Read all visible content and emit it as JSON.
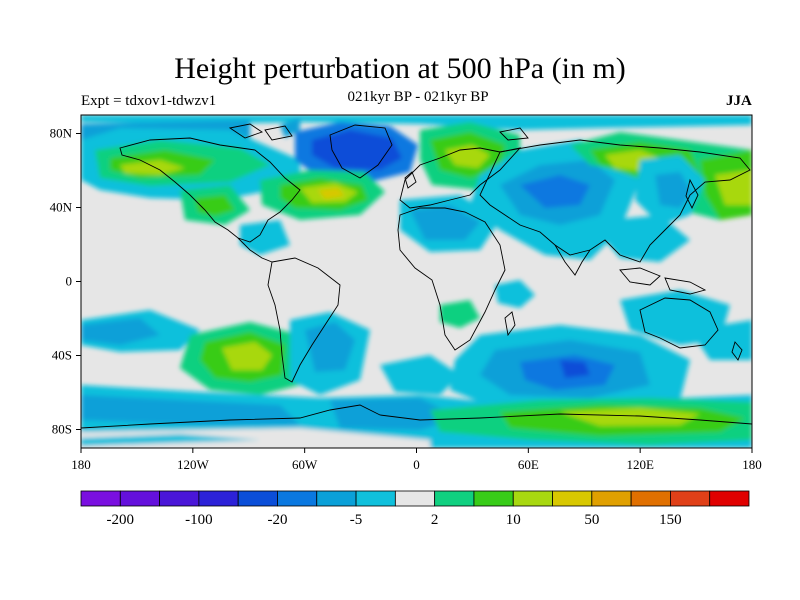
{
  "title": "Height perturbation at 500 hPa (in m)",
  "subtitle_left": "Expt = tdxov1-tdwzv1",
  "subtitle_center": "021kyr BP - 021kyr BP",
  "subtitle_right": "JJA",
  "map": {
    "projection": "cylindrical equidistant",
    "background_color": "#e6e6e6",
    "x_ticks": [
      {
        "lon": -180,
        "label": "180"
      },
      {
        "lon": -120,
        "label": "120W"
      },
      {
        "lon": -60,
        "label": "60W"
      },
      {
        "lon": 0,
        "label": "0"
      },
      {
        "lon": 60,
        "label": "60E"
      },
      {
        "lon": 120,
        "label": "120E"
      },
      {
        "lon": 180,
        "label": "180"
      }
    ],
    "y_ticks": [
      {
        "lat": 80,
        "label": "80N"
      },
      {
        "lat": 40,
        "label": "40N"
      },
      {
        "lat": 0,
        "label": "0"
      },
      {
        "lat": -40,
        "label": "40S"
      },
      {
        "lat": -80,
        "label": "80S"
      }
    ],
    "lat_range": [
      -90,
      90
    ],
    "lon_range": [
      -180,
      180
    ]
  },
  "colorbar": {
    "colors": [
      "#7a0fe0",
      "#6410dc",
      "#4a16d8",
      "#2c22d8",
      "#0b4ed8",
      "#0a78e0",
      "#0aa0d8",
      "#10c0dc",
      "#e6e6e6",
      "#10d080",
      "#38cc18",
      "#a8d810",
      "#d8c800",
      "#e0a000",
      "#e07000",
      "#e04018",
      "#e00000"
    ],
    "labels": [
      {
        "boundary": 1,
        "text": "-200"
      },
      {
        "boundary": 3,
        "text": "-100"
      },
      {
        "boundary": 5,
        "text": "-20"
      },
      {
        "boundary": 7,
        "text": "-5"
      },
      {
        "boundary": 9,
        "text": "2"
      },
      {
        "boundary": 11,
        "text": "10"
      },
      {
        "boundary": 13,
        "text": "50"
      },
      {
        "boundary": 15,
        "text": "150"
      }
    ]
  }
}
